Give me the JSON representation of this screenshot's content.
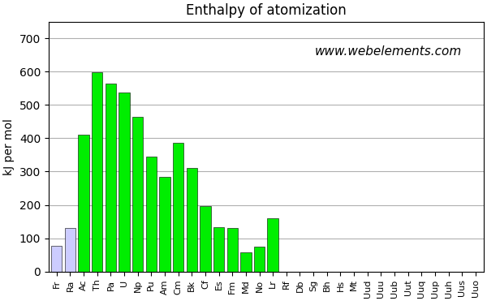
{
  "chart_data": {
    "type": "bar",
    "title": "Enthalpy of atomization",
    "y_label": "kJ per mol",
    "annotation": "www.webelements.com",
    "categories": [
      "Fr",
      "Ra",
      "Ac",
      "Th",
      "Pa",
      "U",
      "Np",
      "Pu",
      "Am",
      "Cm",
      "Bk",
      "Cf",
      "Es",
      "Fm",
      "Md",
      "No",
      "Lr",
      "Rf",
      "Db",
      "Sg",
      "Bh",
      "Hs",
      "Mt",
      "Uud",
      "Uuu",
      "Uub",
      "Uut",
      "Uuq",
      "Uup",
      "Uuh",
      "Uus",
      "Uuo"
    ],
    "values": [
      77,
      130,
      410,
      598,
      563,
      536,
      464,
      345,
      284,
      386,
      310,
      196,
      133,
      131,
      58,
      74,
      159,
      0,
      0,
      0,
      0,
      0,
      0,
      0,
      0,
      0,
      0,
      0,
      0,
      0,
      0,
      0
    ],
    "colors": [
      "#ccccff",
      "#ccccff",
      "#00ee00",
      "#00ee00",
      "#00ee00",
      "#00ee00",
      "#00ee00",
      "#00ee00",
      "#00ee00",
      "#00ee00",
      "#00ee00",
      "#00ee00",
      "#00ee00",
      "#00ee00",
      "#00ee00",
      "#00ee00",
      "#00ee00",
      "#dd0000",
      "#dd0000",
      "#dd0000",
      "#dd0000",
      "#dd0000",
      "#dd0000",
      "#dd0000",
      "#dd0000",
      "#dd0000",
      "#dd0000",
      "#dd0000",
      "#dd0000",
      "#dd0000",
      "#dd0000",
      "#dd0000"
    ],
    "ylim": [
      0,
      750
    ],
    "yticks": [
      0,
      100,
      200,
      300,
      400,
      500,
      600,
      700
    ],
    "grid": true
  }
}
